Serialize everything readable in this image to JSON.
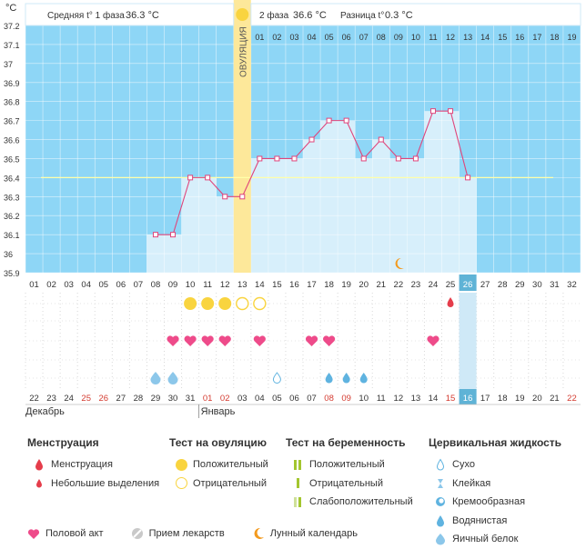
{
  "header": {
    "phase1_label": "Средняя t° 1 фаза",
    "phase1_value": "36.3 °C",
    "phase2_label": "2 фаза",
    "phase2_value": "36.6 °C",
    "diff_label": "Разница t°",
    "diff_value": "0.3 °C"
  },
  "colors": {
    "plot_bg": "#8ed6f6",
    "bar_fill": "#d7effb",
    "line": "#e0457b",
    "ovulation": "#fde89a",
    "coverline": "#ffffaa",
    "today": "#5fb3d6",
    "heart": "#ee4b8a",
    "drop_light": "#8cc7ea",
    "ovul_positive": "#f9d43f"
  },
  "chart_data": {
    "type": "line",
    "unit_label": "°C",
    "ylim": [
      35.9,
      37.2
    ],
    "y_ticks": [
      "37.2",
      "37.1",
      "37",
      "36.9",
      "36.8",
      "36.7",
      "36.6",
      "36.5",
      "36.4",
      "36.3",
      "36.2",
      "36.1",
      "36",
      "35.9"
    ],
    "cycle_days": [
      "01",
      "02",
      "03",
      "04",
      "05",
      "06",
      "07",
      "08",
      "09",
      "10",
      "11",
      "12",
      "13",
      "14",
      "15",
      "16",
      "17",
      "18",
      "19",
      "20",
      "21",
      "22",
      "23",
      "24",
      "25",
      "26",
      "27",
      "28",
      "29",
      "30",
      "31",
      "32"
    ],
    "post_ovulation_days": [
      "01",
      "02",
      "03",
      "04",
      "05",
      "06",
      "07",
      "08",
      "09",
      "10",
      "11",
      "12",
      "13",
      "14",
      "15",
      "16",
      "17",
      "18",
      "19"
    ],
    "ovulation_label": "ОВУЛЯЦИЯ",
    "ovulation_day": 13,
    "coverline": 36.4,
    "today_day": 26,
    "series": [
      {
        "x": [
          8,
          9,
          10,
          11,
          12,
          13,
          14,
          15,
          16,
          17,
          18,
          19,
          20,
          21,
          22,
          23,
          24,
          25,
          26
        ],
        "y": [
          36.1,
          36.1,
          36.4,
          36.4,
          36.3,
          36.3,
          36.5,
          36.5,
          36.5,
          36.6,
          36.7,
          36.7,
          36.5,
          36.6,
          36.5,
          36.5,
          36.75,
          36.75,
          36.4
        ]
      }
    ],
    "calendar_dates": [
      "22",
      "23",
      "24",
      "25",
      "26",
      "27",
      "28",
      "29",
      "30",
      "31",
      "01",
      "02",
      "03",
      "04",
      "05",
      "06",
      "07",
      "08",
      "09",
      "10",
      "11",
      "12",
      "13",
      "14",
      "15",
      "16",
      "17",
      "18",
      "19",
      "20",
      "21",
      "22"
    ],
    "red_dates_index": [
      4,
      5,
      11,
      12,
      18,
      19,
      25,
      32
    ],
    "month_labels": [
      "Декабрь",
      "Январь"
    ],
    "markers": {
      "ovulation_positive": [
        10,
        11,
        12
      ],
      "ovulation_negative": [
        13,
        14
      ],
      "spotting": [
        25
      ],
      "intercourse": [
        9,
        10,
        11,
        12,
        14,
        17,
        18,
        24
      ],
      "fluid_egg_white": [
        8,
        9
      ],
      "fluid_dry": [
        15
      ],
      "fluid_watery": [
        18,
        19,
        20
      ],
      "moon": [
        22
      ]
    }
  },
  "legend": {
    "menstruation": {
      "title": "Менструация",
      "items": [
        "Менструация",
        "Небольшие выделения"
      ]
    },
    "ovulation_test": {
      "title": "Тест на овуляцию",
      "items": [
        "Положительный",
        "Отрицательный"
      ]
    },
    "pregnancy_test": {
      "title": "Тест на беременность",
      "items": [
        "Положительный",
        "Отрицательный",
        "Слабоположительный"
      ]
    },
    "cervical_fluid": {
      "title": "Цервикальная жидкость",
      "items": [
        "Сухо",
        "Клейкая",
        "Кремообразная",
        "Водянистая",
        "Яичный белок"
      ]
    },
    "bottom": [
      "Половой акт",
      "Прием лекарств",
      "Лунный календарь"
    ]
  }
}
